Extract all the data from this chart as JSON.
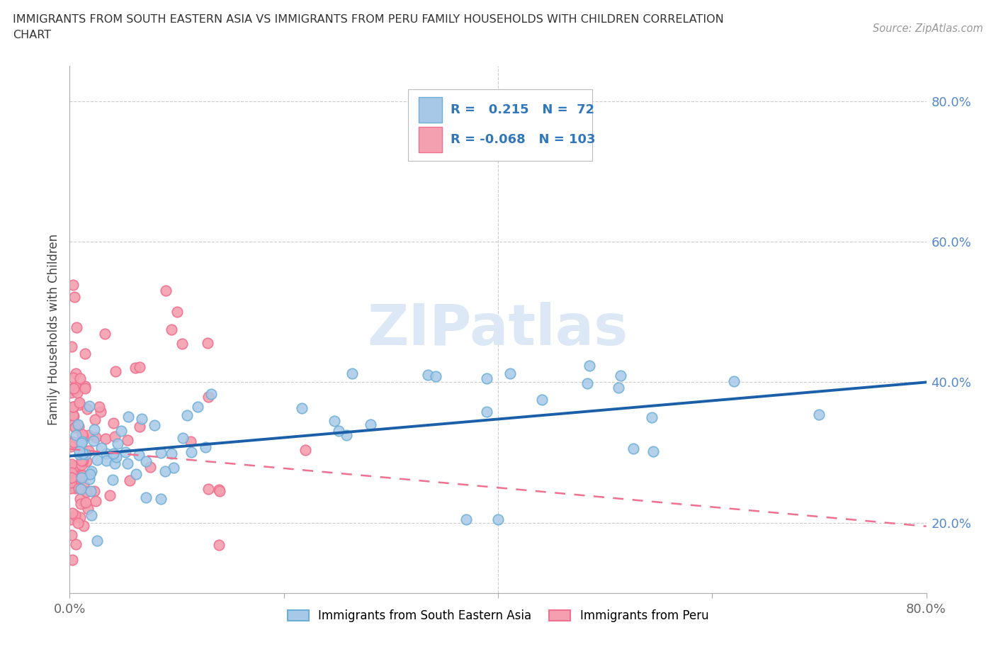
{
  "title_line1": "IMMIGRANTS FROM SOUTH EASTERN ASIA VS IMMIGRANTS FROM PERU FAMILY HOUSEHOLDS WITH CHILDREN CORRELATION",
  "title_line2": "CHART",
  "source": "Source: ZipAtlas.com",
  "ylabel": "Family Households with Children",
  "xlim": [
    0.0,
    0.8
  ],
  "ylim": [
    0.1,
    0.85
  ],
  "blue_R": 0.215,
  "blue_N": 72,
  "pink_R": -0.068,
  "pink_N": 103,
  "blue_color": "#a8c8e8",
  "blue_edge_color": "#6baed6",
  "pink_color": "#f4a0b0",
  "pink_edge_color": "#f07090",
  "blue_line_color": "#1a5fa8",
  "pink_line_color": "#e07898",
  "watermark": "ZIPatlas",
  "legend_blue_label": "Immigrants from South Eastern Asia",
  "legend_pink_label": "Immigrants from Peru",
  "seed": 99,
  "blue_line_start_y": 0.295,
  "blue_line_end_y": 0.4,
  "pink_line_start_y": 0.305,
  "pink_line_end_y": 0.195
}
